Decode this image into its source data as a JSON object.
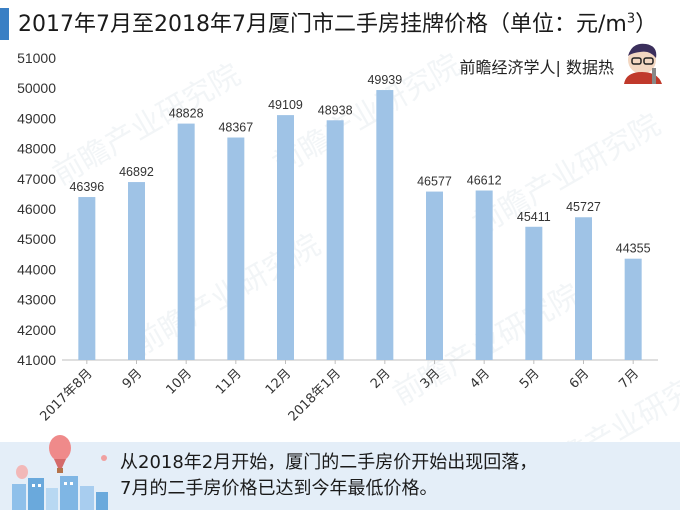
{
  "header": {
    "title": "2017年7月至2018年7月厦门市二手房挂牌价格（单位：元/m",
    "title_sup": "3",
    "title_close": "）",
    "brand": "前瞻经济学人| 数据热"
  },
  "watermark_text": "前瞻产业研究院",
  "footer": {
    "line1": "从2018年2月开始，厦门的二手房价开始出现回落，",
    "line2": "7月的二手房价格已达到今年最低价格。"
  },
  "colors": {
    "bar": "#9fc3e6",
    "accent": "#3a7fc4",
    "axis": "#bfbfbf",
    "text": "#333333",
    "footer_bg": "#e4eef8"
  },
  "chart_data": {
    "type": "bar",
    "title": "2017年7月至2018年7月厦门市二手房挂牌价格（单位：元/m³）",
    "categories": [
      "2017年8月",
      "9月",
      "10月",
      "11月",
      "12月",
      "2018年1月",
      "2月",
      "3月",
      "4月",
      "5月",
      "6月",
      "7月"
    ],
    "values": [
      46396,
      46892,
      48828,
      48367,
      49109,
      48938,
      49939,
      46577,
      46612,
      45411,
      45727,
      44355
    ],
    "y_ticks": [
      "41000",
      "42000",
      "43000",
      "44000",
      "45000",
      "46000",
      "47000",
      "48000",
      "49000",
      "50000",
      "51000"
    ],
    "ylim": [
      41000,
      51000
    ],
    "xlabel": "",
    "ylabel": "",
    "grid": false
  }
}
